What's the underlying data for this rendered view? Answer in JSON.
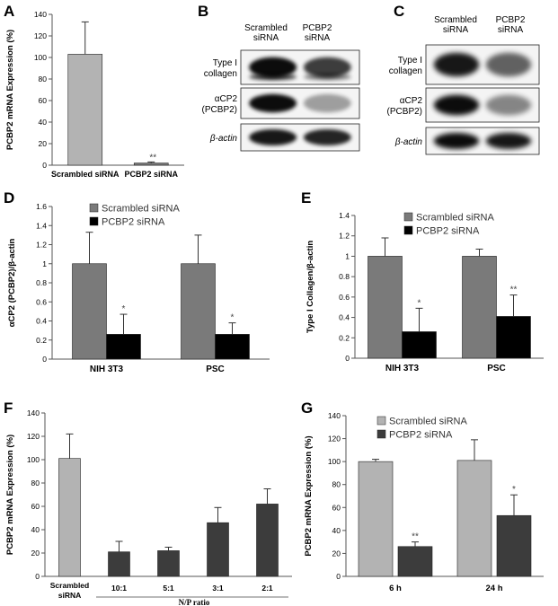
{
  "panel_labels": {
    "A": "A",
    "B": "B",
    "C": "C",
    "D": "D",
    "E": "E",
    "F": "F",
    "G": "G"
  },
  "colors": {
    "light_gray": "#b3b3b3",
    "mid_gray": "#7a7a7a",
    "dark_gray": "#3c3c3c",
    "black": "#000000",
    "axis": "#555555"
  },
  "blots": {
    "B": {
      "columns": [
        "Scrambled\nsiRNA",
        "PCBP2\nsiRNA"
      ],
      "rows": [
        "Type I\ncollagen",
        "αCP2\n(PCBP2)",
        "β-actin"
      ]
    },
    "C": {
      "columns": [
        "Scrambled\nsiRNA",
        "PCBP2\nsiRNA"
      ],
      "rows": [
        "Type I\ncollagen",
        "αCP2\n(PCBP2)",
        "β-actin"
      ]
    }
  },
  "chart_data": [
    {
      "panel": "A",
      "type": "bar",
      "categories": [
        "Scrambled siRNA",
        "PCBP2 siRNA"
      ],
      "values": [
        103,
        2
      ],
      "errors": [
        30,
        1
      ],
      "annotations": [
        "",
        "**"
      ],
      "colors": [
        "#b3b3b3",
        "#7a7a7a"
      ],
      "ylabel": "PCBP2 mRNA Expression (%)",
      "ylim": [
        0,
        140
      ],
      "yticks": [
        0,
        20,
        40,
        60,
        80,
        100,
        120,
        140
      ]
    },
    {
      "panel": "D",
      "type": "bar",
      "categories": [
        "NIH 3T3",
        "PSC"
      ],
      "series": [
        {
          "name": "Scrambled siRNA",
          "values": [
            1.0,
            1.0
          ],
          "errors": [
            0.33,
            0.3
          ],
          "color": "#7a7a7a"
        },
        {
          "name": "PCBP2 siRNA",
          "values": [
            0.26,
            0.26
          ],
          "errors": [
            0.21,
            0.12
          ],
          "color": "#000000"
        }
      ],
      "annotations": [
        [
          "",
          "*"
        ],
        [
          "",
          "*"
        ]
      ],
      "ylabel": "αCP2 (PCBP2)/β-actin",
      "ylim": [
        0,
        1.6
      ],
      "yticks": [
        "0",
        "0.2",
        "0.4",
        "0.6",
        "0.8",
        "1",
        "1.2",
        "1.4",
        "1.6"
      ],
      "legend": "top-left"
    },
    {
      "panel": "E",
      "type": "bar",
      "categories": [
        "NIH 3T3",
        "PSC"
      ],
      "series": [
        {
          "name": "Scrambled siRNA",
          "values": [
            1.0,
            1.0
          ],
          "errors": [
            0.18,
            0.07
          ],
          "color": "#7a7a7a"
        },
        {
          "name": "PCBP2 siRNA",
          "values": [
            0.26,
            0.41
          ],
          "errors": [
            0.23,
            0.21
          ],
          "color": "#000000"
        }
      ],
      "annotations": [
        [
          "",
          "*"
        ],
        [
          "",
          "**"
        ]
      ],
      "ylabel": "Type I Collagen/β-actin",
      "ylim": [
        0,
        1.4
      ],
      "yticks": [
        "0",
        "0.2",
        "0.4",
        "0.6",
        "0.8",
        "1",
        "1.2",
        "1.4"
      ],
      "legend": "top-left"
    },
    {
      "panel": "F",
      "type": "bar",
      "categories": [
        "Scrambled siRNA",
        "10:1",
        "5:1",
        "3:1",
        "2:1"
      ],
      "values": [
        101,
        21,
        22,
        46,
        62
      ],
      "errors": [
        21,
        9,
        3,
        13,
        13
      ],
      "colors": [
        "#b3b3b3",
        "#3c3c3c",
        "#3c3c3c",
        "#3c3c3c",
        "#3c3c3c"
      ],
      "ylabel": "PCBP2 mRNA Expression (%)",
      "xlabel": "N/P ratio",
      "ylim": [
        0,
        140
      ],
      "yticks": [
        0,
        20,
        40,
        60,
        80,
        100,
        120,
        140
      ]
    },
    {
      "panel": "G",
      "type": "bar",
      "categories": [
        "6 h",
        "24 h"
      ],
      "series": [
        {
          "name": "Scrambled siRNA",
          "values": [
            100,
            101
          ],
          "errors": [
            2,
            18
          ],
          "color": "#b3b3b3"
        },
        {
          "name": "PCBP2 siRNA",
          "values": [
            26,
            53
          ],
          "errors": [
            4,
            18
          ],
          "color": "#3c3c3c"
        }
      ],
      "annotations": [
        [
          "",
          "**"
        ],
        [
          "",
          "*"
        ]
      ],
      "ylabel": "PCBP2 mRNA Expression (%)",
      "ylim": [
        0,
        140
      ],
      "yticks": [
        0,
        20,
        40,
        60,
        80,
        100,
        120,
        140
      ],
      "legend": "top-left"
    }
  ]
}
